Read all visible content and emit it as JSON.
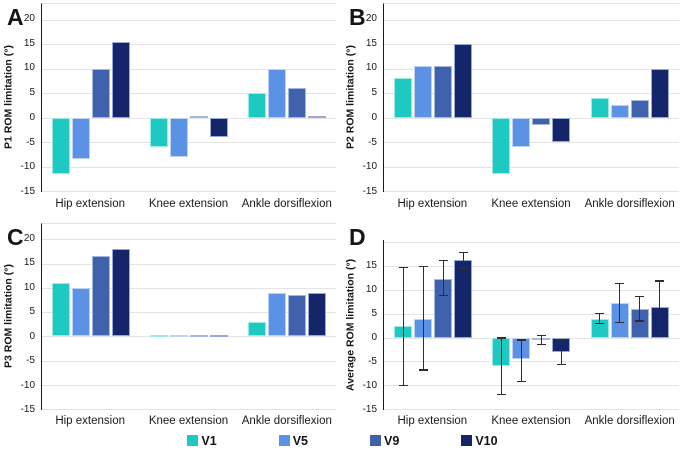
{
  "legend": {
    "items": [
      {
        "label": "V1",
        "color": "#1ec9c1",
        "border": "#9aeae5"
      },
      {
        "label": "V5",
        "color": "#5b92e5",
        "border": "#bcd3f5"
      },
      {
        "label": "V9",
        "color": "#4062ac",
        "border": "#a3b7e2"
      },
      {
        "label": "V10",
        "color": "#142669",
        "border": "#98a8d8"
      }
    ]
  },
  "chart_data": [
    {
      "type": "bar",
      "panel": "A",
      "ylabel": "P1 ROM limitation (°)",
      "categories": [
        "Hip extension",
        "Knee extension",
        "Ankle dorsiflexion"
      ],
      "series": [
        {
          "name": "V1",
          "values": [
            -11.5,
            -6,
            5
          ]
        },
        {
          "name": "V5",
          "values": [
            -8.5,
            -8,
            10
          ]
        },
        {
          "name": "V9",
          "values": [
            10,
            0.3,
            6
          ]
        },
        {
          "name": "V10",
          "values": [
            15.5,
            -4,
            0.3
          ]
        }
      ],
      "ylim": [
        -15,
        23.2
      ],
      "yticks": [
        20,
        15,
        10,
        5,
        0,
        -5,
        -10,
        -15
      ],
      "grid_values": [
        20,
        15,
        10,
        5,
        0,
        -5,
        -10,
        -15
      ],
      "frame_top": true,
      "grid": true,
      "legend_position": "bottom"
    },
    {
      "type": "bar",
      "panel": "B",
      "ylabel": "P2 ROM limitation (°)",
      "categories": [
        "Hip extension",
        "Knee extension",
        "Ankle dorsiflexion"
      ],
      "series": [
        {
          "name": "V1",
          "values": [
            8,
            -11.5,
            4
          ]
        },
        {
          "name": "V5",
          "values": [
            10.5,
            -6,
            2.5
          ]
        },
        {
          "name": "V9",
          "values": [
            10.5,
            -1.5,
            3.5
          ]
        },
        {
          "name": "V10",
          "values": [
            15,
            -5,
            10
          ]
        }
      ],
      "ylim": [
        -15,
        23.2
      ],
      "yticks": [
        20,
        15,
        10,
        5,
        0,
        -5,
        -10,
        -15
      ],
      "grid_values": [
        20,
        15,
        10,
        5,
        0,
        -5,
        -10,
        -15
      ],
      "frame_top": true,
      "grid": true,
      "legend_position": "bottom"
    },
    {
      "type": "bar",
      "panel": "C",
      "ylabel": "P3 ROM limitation (°)",
      "categories": [
        "Hip extension",
        "Knee extension",
        "Ankle dorsiflexion"
      ],
      "series": [
        {
          "name": "V1",
          "values": [
            11,
            0.3,
            3
          ]
        },
        {
          "name": "V5",
          "values": [
            10,
            0.3,
            9
          ]
        },
        {
          "name": "V9",
          "values": [
            16.5,
            0.3,
            8.5
          ]
        },
        {
          "name": "V10",
          "values": [
            18,
            0.3,
            9
          ]
        }
      ],
      "ylim": [
        -15,
        23.2
      ],
      "yticks": [
        20,
        15,
        10,
        5,
        0,
        -5,
        -10,
        -15
      ],
      "grid_values": [
        20,
        15,
        10,
        5,
        0,
        -5,
        -10,
        -15
      ],
      "frame_top": true,
      "grid": true,
      "legend_position": "bottom"
    },
    {
      "type": "bar",
      "panel": "D",
      "ylabel": "Average ROM limitation (°)",
      "categories": [
        "Hip extension",
        "Knee extension",
        "Ankle dorsiflexion"
      ],
      "series": [
        {
          "name": "V1",
          "values": [
            2.5,
            -5.9,
            4
          ],
          "errors": [
            [
              -10,
              14.8
            ],
            [
              -11.9,
              -0.1
            ],
            [
              3,
              5.1
            ]
          ]
        },
        {
          "name": "V5",
          "values": [
            4,
            -4.6,
            7.2
          ],
          "errors": [
            [
              -6.8,
              15
            ],
            [
              -9.3,
              -0.5
            ],
            [
              3.2,
              11.3
            ]
          ]
        },
        {
          "name": "V9",
          "values": [
            12.4,
            -0.4,
            6
          ],
          "errors": [
            [
              8.8,
              16.2
            ],
            [
              -1.4,
              0.4
            ],
            [
              3.5,
              8.6
            ]
          ]
        },
        {
          "name": "V10",
          "values": [
            16.2,
            -3,
            6.4
          ],
          "errors": [
            [
              14.6,
              17.9
            ],
            [
              -5.6,
              -0.5
            ],
            [
              0.9,
              11.9
            ]
          ]
        }
      ],
      "ylim": [
        -15,
        20.5
      ],
      "yticks": [
        15,
        10,
        5,
        0,
        -5,
        -10,
        -15
      ],
      "grid_values": [
        20,
        15,
        10,
        5,
        0,
        -5,
        -10,
        -15
      ],
      "frame_top": false,
      "grid": true,
      "legend_position": "bottom"
    }
  ]
}
